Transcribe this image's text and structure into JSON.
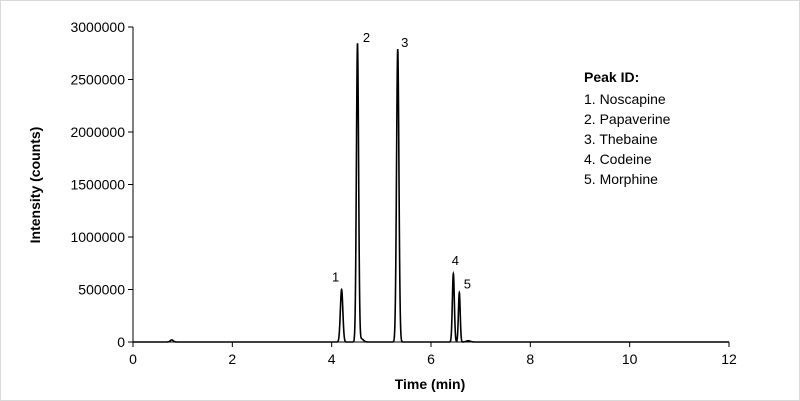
{
  "chart_data": {
    "type": "line",
    "title": "",
    "xlabel": "Time (min)",
    "ylabel": "Intensity (counts)",
    "xlim": [
      0,
      12
    ],
    "ylim": [
      0,
      3000000
    ],
    "x_ticks": [
      "0",
      "2",
      "4",
      "6",
      "8",
      "10",
      "12"
    ],
    "y_ticks": [
      "0",
      "500000",
      "1000000",
      "1500000",
      "2000000",
      "2500000",
      "3000000"
    ],
    "grid": false,
    "series": [
      {
        "color": "#000000",
        "peaks": [
          {
            "label": "1",
            "time": 4.2,
            "height": 500000,
            "width": 0.025
          },
          {
            "label": "2",
            "time": 4.52,
            "height": 2840000,
            "width": 0.022
          },
          {
            "label": "3",
            "time": 5.33,
            "height": 2790000,
            "width": 0.024
          },
          {
            "label": "4",
            "time": 6.45,
            "height": 650000,
            "width": 0.02
          },
          {
            "label": "5",
            "time": 6.57,
            "height": 470000,
            "width": 0.018
          }
        ],
        "minor_features": [
          {
            "time": 0.78,
            "height": 20000,
            "width": 0.03
          },
          {
            "time": 4.6,
            "height": 30000,
            "width": 0.04
          },
          {
            "time": 6.75,
            "height": 12000,
            "width": 0.04
          }
        ]
      }
    ],
    "legend": {
      "position": "top-right",
      "title": "Peak ID:",
      "items": [
        "1. Noscapine",
        "2. Papaverine",
        "3. Thebaine",
        "4. Codeine",
        "5. Morphine"
      ]
    }
  }
}
